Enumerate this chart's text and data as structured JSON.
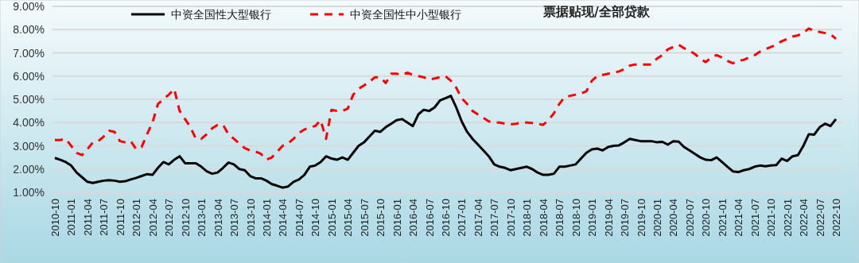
{
  "chart_data": {
    "type": "line",
    "title": "票据贴现/全部贷款",
    "categories": [
      "2010-10",
      null,
      null,
      "2011-01",
      null,
      null,
      "2011-04",
      null,
      null,
      "2011-07",
      null,
      null,
      "2011-10",
      null,
      null,
      "2012-01",
      null,
      null,
      "2012-04",
      null,
      null,
      "2012-07",
      null,
      null,
      "2012-10",
      null,
      null,
      "2013-01",
      null,
      null,
      "2013-04",
      null,
      null,
      "2013-07",
      null,
      null,
      "2013-10",
      null,
      null,
      "2014-01",
      null,
      null,
      "2014-04",
      null,
      null,
      "2014-07",
      null,
      null,
      "2014-10",
      null,
      null,
      "2015-01",
      null,
      null,
      "2015-04",
      null,
      null,
      "2015-07",
      null,
      null,
      "2015-10",
      null,
      null,
      "2016-01",
      null,
      null,
      "2016-04",
      null,
      null,
      "2016-07",
      null,
      null,
      "2016-10",
      null,
      null,
      "2017-01",
      null,
      null,
      "2017-04",
      null,
      null,
      "2017-07",
      null,
      null,
      "2017-10",
      null,
      null,
      "2018-01",
      null,
      null,
      "2018-04",
      null,
      null,
      "2018-07",
      null,
      null,
      "2018-10",
      null,
      null,
      "2019-01",
      null,
      null,
      "2019-04",
      null,
      null,
      "2019-07",
      null,
      null,
      "2019-10",
      null,
      null,
      "2020-01",
      null,
      null,
      "2020-04",
      null,
      null,
      "2020-07",
      null,
      null,
      "2020-10",
      null,
      null,
      "2021-01",
      null,
      null,
      "2021-04",
      null,
      null,
      "2021-07",
      null,
      null,
      "2021-10",
      null,
      null,
      "2022-01",
      null,
      null,
      "2022-04",
      null,
      null,
      "2022-07",
      null,
      null,
      "2022-10"
    ],
    "series": [
      {
        "name": "中资全国性大型银行",
        "color": "#000000",
        "line_style": "solid",
        "values": [
          2.48,
          2.4,
          2.3,
          2.15,
          1.85,
          1.65,
          1.45,
          1.4,
          1.45,
          1.5,
          1.52,
          1.5,
          1.45,
          1.48,
          1.55,
          1.62,
          1.7,
          1.78,
          1.75,
          2.05,
          2.3,
          2.2,
          2.4,
          2.55,
          2.25,
          2.25,
          2.25,
          2.1,
          1.9,
          1.8,
          1.85,
          2.05,
          2.28,
          2.2,
          2.0,
          1.95,
          1.7,
          1.6,
          1.6,
          1.5,
          1.35,
          1.28,
          1.2,
          1.25,
          1.45,
          1.55,
          1.75,
          2.1,
          2.15,
          2.3,
          2.55,
          2.45,
          2.4,
          2.5,
          2.4,
          2.7,
          3.0,
          3.15,
          3.4,
          3.65,
          3.6,
          3.8,
          3.95,
          4.1,
          4.15,
          4.0,
          3.85,
          4.35,
          4.55,
          4.5,
          4.65,
          4.95,
          5.05,
          5.15,
          4.65,
          4.05,
          3.6,
          3.3,
          3.05,
          2.8,
          2.55,
          2.2,
          2.1,
          2.05,
          1.95,
          2.0,
          2.05,
          2.1,
          2.0,
          1.85,
          1.75,
          1.75,
          1.8,
          2.1,
          2.1,
          2.15,
          2.2,
          2.45,
          2.7,
          2.85,
          2.88,
          2.8,
          2.95,
          3.0,
          3.02,
          3.15,
          3.3,
          3.25,
          3.2,
          3.2,
          3.2,
          3.15,
          3.17,
          3.05,
          3.2,
          3.18,
          2.95,
          2.8,
          2.65,
          2.5,
          2.4,
          2.38,
          2.5,
          2.3,
          2.1,
          1.9,
          1.87,
          1.95,
          2.0,
          2.1,
          2.15,
          2.12,
          2.15,
          2.17,
          2.45,
          2.35,
          2.55,
          2.6,
          3.0,
          3.5,
          3.48,
          3.8,
          3.95,
          3.85,
          4.15
        ]
      },
      {
        "name": "中资全国性中小型银行",
        "color": "#ff0000",
        "line_style": "dashed",
        "values": [
          3.25,
          3.25,
          3.3,
          3.0,
          2.7,
          2.6,
          2.85,
          3.15,
          3.2,
          3.4,
          3.65,
          3.6,
          3.2,
          3.15,
          3.2,
          2.85,
          2.95,
          3.5,
          4.0,
          4.8,
          5.0,
          5.2,
          5.45,
          4.5,
          4.15,
          3.8,
          3.3,
          3.3,
          3.5,
          3.75,
          3.9,
          3.9,
          3.5,
          3.3,
          3.1,
          2.9,
          2.8,
          2.75,
          2.65,
          2.4,
          2.5,
          2.75,
          3.0,
          3.1,
          3.3,
          3.55,
          3.7,
          3.8,
          3.85,
          4.1,
          3.3,
          4.55,
          4.5,
          4.5,
          4.6,
          5.2,
          5.45,
          5.6,
          5.75,
          5.95,
          5.95,
          5.7,
          6.1,
          6.1,
          6.05,
          6.15,
          6.05,
          6.0,
          5.95,
          5.85,
          5.9,
          5.95,
          6.0,
          5.8,
          5.5,
          5.05,
          4.8,
          4.5,
          4.35,
          4.2,
          4.05,
          4.0,
          4.0,
          3.95,
          3.92,
          3.95,
          4.0,
          4.0,
          3.98,
          3.95,
          3.9,
          4.1,
          4.4,
          4.8,
          5.1,
          5.15,
          5.2,
          5.25,
          5.35,
          5.8,
          6.0,
          6.05,
          6.1,
          6.15,
          6.2,
          6.3,
          6.45,
          6.5,
          6.5,
          6.5,
          6.5,
          6.75,
          6.9,
          7.15,
          7.25,
          7.35,
          7.2,
          7.1,
          6.95,
          6.75,
          6.6,
          6.8,
          6.9,
          6.8,
          6.65,
          6.55,
          6.65,
          6.7,
          6.8,
          6.9,
          7.05,
          7.15,
          7.25,
          7.35,
          7.5,
          7.6,
          7.7,
          7.75,
          7.85,
          8.05,
          7.95,
          7.9,
          7.85,
          7.8,
          7.6
        ]
      }
    ],
    "ylim": [
      1,
      9
    ],
    "yticks": [
      {
        "value": 1,
        "label": "1.00%"
      },
      {
        "value": 2,
        "label": "2.00%"
      },
      {
        "value": 3,
        "label": "3.00%"
      },
      {
        "value": 4,
        "label": "4.00%"
      },
      {
        "value": 5,
        "label": "5.00%"
      },
      {
        "value": 6,
        "label": "6.00%"
      },
      {
        "value": 7,
        "label": "7.00%"
      },
      {
        "value": 8,
        "label": "8.00%"
      },
      {
        "value": 9,
        "label": "9.00%"
      }
    ],
    "grid": "y",
    "legend": "top left"
  }
}
